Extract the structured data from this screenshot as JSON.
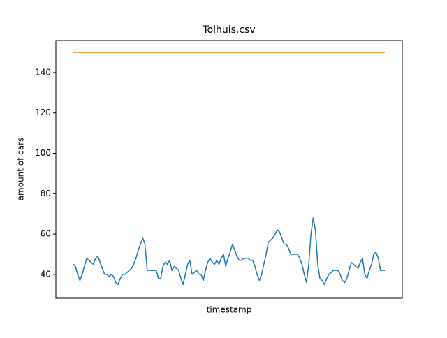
{
  "chart_data": {
    "type": "line",
    "title": "Tolhuis.csv",
    "xlabel": "timestamp",
    "ylabel": "amount of cars",
    "ylim": [
      28.2,
      155.9
    ],
    "yticks": [
      40,
      60,
      80,
      100,
      120,
      140
    ],
    "grid": false,
    "series": [
      {
        "color": "#1f77b4",
        "values": [
          45,
          44,
          40,
          37,
          40,
          44,
          48,
          47,
          46,
          45,
          48,
          49,
          46,
          43,
          40,
          40,
          39,
          40,
          39,
          36,
          35,
          38,
          40,
          40,
          41,
          42,
          43,
          45,
          48,
          52,
          55,
          58,
          55,
          42,
          42,
          42,
          42,
          42,
          38,
          38,
          44,
          46,
          45,
          47,
          42,
          44,
          43,
          42,
          38,
          35,
          40,
          45,
          47,
          40,
          41,
          42,
          40,
          40,
          37,
          42,
          46,
          48,
          46,
          45,
          47,
          45,
          48,
          50,
          44,
          48,
          51,
          55,
          52,
          49,
          47,
          47,
          48,
          48,
          48,
          47,
          47,
          44,
          40,
          37,
          40,
          45,
          50,
          56,
          57,
          58,
          60,
          62,
          61,
          58,
          55,
          55,
          53,
          50,
          50,
          50,
          50,
          48,
          45,
          40,
          36,
          45,
          60,
          68,
          62,
          45,
          38,
          37,
          35,
          38,
          40,
          41,
          42,
          42,
          42,
          40,
          37,
          36,
          38,
          42,
          46,
          45,
          44,
          43,
          46,
          48,
          40,
          38,
          42,
          45,
          50,
          51,
          48,
          42,
          42,
          42
        ]
      },
      {
        "color": "#ff7f0e",
        "values": [
          150,
          150
        ]
      }
    ]
  }
}
